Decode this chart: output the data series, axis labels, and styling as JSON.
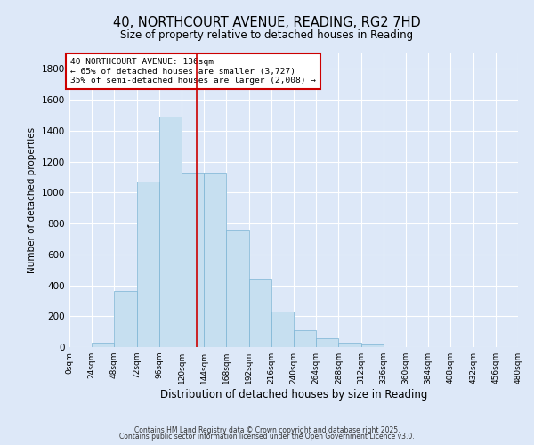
{
  "title": "40, NORTHCOURT AVENUE, READING, RG2 7HD",
  "subtitle": "Size of property relative to detached houses in Reading",
  "xlabel": "Distribution of detached houses by size in Reading",
  "ylabel": "Number of detached properties",
  "bar_values": [
    0,
    30,
    360,
    1070,
    1490,
    1130,
    1130,
    760,
    440,
    230,
    110,
    55,
    30,
    15,
    0,
    0,
    0,
    0,
    0,
    0
  ],
  "bin_edges": [
    0,
    24,
    48,
    72,
    96,
    120,
    144,
    168,
    192,
    216,
    240,
    264,
    288,
    312,
    336,
    360,
    384,
    408,
    432,
    456,
    480
  ],
  "tick_labels": [
    "0sqm",
    "24sqm",
    "48sqm",
    "72sqm",
    "96sqm",
    "120sqm",
    "144sqm",
    "168sqm",
    "192sqm",
    "216sqm",
    "240sqm",
    "264sqm",
    "288sqm",
    "312sqm",
    "336sqm",
    "360sqm",
    "384sqm",
    "408sqm",
    "432sqm",
    "456sqm",
    "480sqm"
  ],
  "property_size": 136,
  "bar_color": "#c6dff0",
  "bar_edge_color": "#7ab3d4",
  "vline_color": "#cc0000",
  "annotation_box_edge_color": "#cc0000",
  "annotation_text_line1": "40 NORTHCOURT AVENUE: 136sqm",
  "annotation_text_line2": "← 65% of detached houses are smaller (3,727)",
  "annotation_text_line3": "35% of semi-detached houses are larger (2,008) →",
  "ylim": [
    0,
    1900
  ],
  "yticks": [
    0,
    200,
    400,
    600,
    800,
    1000,
    1200,
    1400,
    1600,
    1800
  ],
  "background_color": "#dde8f8",
  "plot_bg_color": "#dde8f8",
  "grid_color": "#ffffff",
  "footer_line1": "Contains HM Land Registry data © Crown copyright and database right 2025.",
  "footer_line2": "Contains public sector information licensed under the Open Government Licence v3.0."
}
